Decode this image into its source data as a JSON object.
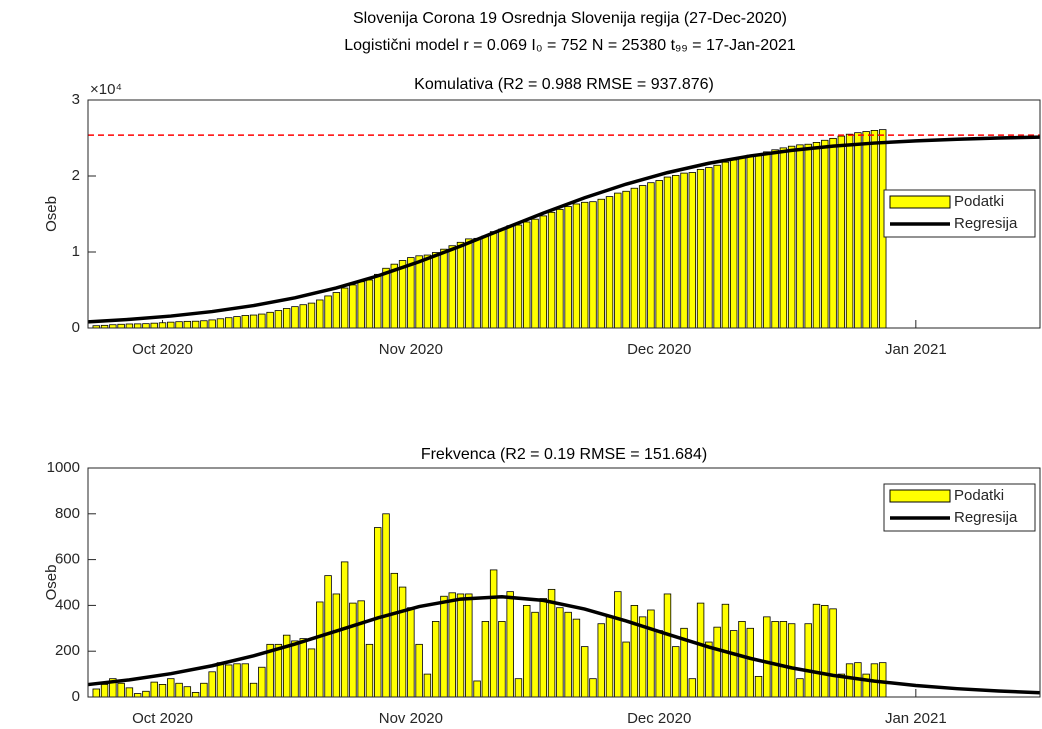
{
  "title": [
    "Slovenija Corona 19 Osrednja Slovenija regija (27-Dec-2020)",
    "Logistični model r = 0.069  I₀ = 752  N = 25380  t₉₉ = 17-Jan-2021"
  ],
  "chart_data": [
    {
      "type": "bar",
      "title": "Komulativa (R2 = 0.988  RMSE = 937.876)",
      "ylabel": "Oseb",
      "y_exponent": "×10⁴",
      "xlim": [
        0,
        115
      ],
      "xticks": [
        {
          "value": 9,
          "label": "Oct 2020"
        },
        {
          "value": 39,
          "label": "Nov 2020"
        },
        {
          "value": 69,
          "label": "Dec 2020"
        },
        {
          "value": 100,
          "label": "Jan 2021"
        }
      ],
      "ylim": [
        0,
        30000
      ],
      "yticks": [
        0,
        {
          "value": 10000,
          "label": "1"
        },
        {
          "value": 20000,
          "label": "2"
        },
        {
          "value": 30000,
          "label": "3"
        }
      ],
      "reference_line": {
        "value": 25380,
        "color": "#ff0000"
      },
      "legend": "right",
      "x": [
        1,
        2,
        3,
        4,
        5,
        6,
        7,
        8,
        9,
        10,
        11,
        12,
        13,
        14,
        15,
        16,
        17,
        18,
        19,
        20,
        21,
        22,
        23,
        24,
        25,
        26,
        27,
        28,
        29,
        30,
        31,
        32,
        33,
        34,
        35,
        36,
        37,
        38,
        39,
        40,
        41,
        42,
        43,
        44,
        45,
        46,
        47,
        48,
        49,
        50,
        51,
        52,
        53,
        54,
        55,
        56,
        57,
        58,
        59,
        60,
        61,
        62,
        63,
        64,
        65,
        66,
        67,
        68,
        69,
        70,
        71,
        72,
        73,
        74,
        75,
        76,
        77,
        78,
        79,
        80,
        81,
        82,
        83,
        84,
        85,
        86,
        87,
        88,
        89,
        90,
        91,
        92,
        93,
        94,
        95,
        96
      ],
      "series": [
        {
          "name": "Podatki",
          "type": "bar",
          "color": "#ffff00",
          "values": [
            300,
            350,
            430,
            490,
            530,
            545,
            570,
            635,
            690,
            770,
            830,
            875,
            895,
            955,
            1065,
            1215,
            1355,
            1500,
            1645,
            1705,
            1835,
            2065,
            2295,
            2565,
            2810,
            3065,
            3275,
            3690,
            4220,
            4670,
            5260,
            5670,
            6090,
            6320,
            7060,
            7860,
            8400,
            8880,
            9270,
            9500,
            9600,
            9930,
            10370,
            10825,
            11275,
            11725,
            11795,
            12125,
            12680,
            13010,
            13470,
            13550,
            13950,
            14320,
            14750,
            15220,
            15610,
            15980,
            16320,
            16540,
            16620,
            16940,
            17290,
            17750,
            17990,
            18390,
            18740,
            19120,
            19410,
            19860,
            20080,
            20380,
            20460,
            20870,
            21110,
            21415,
            21820,
            22110,
            22440,
            22740,
            22830,
            23180,
            23450,
            23700,
            23920,
            24100,
            24180,
            24420,
            24700,
            24950,
            25250,
            25500,
            25700,
            25850,
            26000,
            26100
          ]
        },
        {
          "name": "Regresija",
          "type": "line",
          "color": "#000000",
          "x": [
            0,
            5,
            10,
            15,
            20,
            25,
            30,
            35,
            40,
            45,
            50,
            55,
            60,
            65,
            70,
            75,
            80,
            85,
            90,
            95,
            100,
            105,
            110,
            115
          ],
          "values": [
            813,
            1133,
            1571,
            2162,
            2950,
            3975,
            5272,
            6858,
            8713,
            10777,
            12953,
            15113,
            17135,
            18928,
            20445,
            21674,
            22638,
            23377,
            23928,
            24334,
            24629,
            24843,
            24998,
            25108
          ]
        }
      ]
    },
    {
      "type": "bar",
      "title": "Frekvenca (R2 = 0.19  RMSE = 151.684)",
      "ylabel": "Oseb",
      "xlim": [
        0,
        115
      ],
      "xticks": [
        {
          "value": 9,
          "label": "Oct 2020"
        },
        {
          "value": 39,
          "label": "Nov 2020"
        },
        {
          "value": 69,
          "label": "Dec 2020"
        },
        {
          "value": 100,
          "label": "Jan 2021"
        }
      ],
      "ylim": [
        0,
        1000
      ],
      "yticks": [
        0,
        200,
        400,
        600,
        800,
        1000
      ],
      "legend": "upper right",
      "x": [
        1,
        2,
        3,
        4,
        5,
        6,
        7,
        8,
        9,
        10,
        11,
        12,
        13,
        14,
        15,
        16,
        17,
        18,
        19,
        20,
        21,
        22,
        23,
        24,
        25,
        26,
        27,
        28,
        29,
        30,
        31,
        32,
        33,
        34,
        35,
        36,
        37,
        38,
        39,
        40,
        41,
        42,
        43,
        44,
        45,
        46,
        47,
        48,
        49,
        50,
        51,
        52,
        53,
        54,
        55,
        56,
        57,
        58,
        59,
        60,
        61,
        62,
        63,
        64,
        65,
        66,
        67,
        68,
        69,
        70,
        71,
        72,
        73,
        74,
        75,
        76,
        77,
        78,
        79,
        80,
        81,
        82,
        83,
        84,
        85,
        86,
        87,
        88,
        89,
        90,
        91,
        92,
        93,
        94,
        95,
        96
      ],
      "series": [
        {
          "name": "Podatki",
          "type": "bar",
          "color": "#ffff00",
          "values": [
            35,
            55,
            80,
            60,
            40,
            15,
            25,
            65,
            55,
            80,
            60,
            45,
            20,
            60,
            110,
            150,
            140,
            145,
            145,
            60,
            130,
            230,
            230,
            270,
            245,
            255,
            210,
            415,
            530,
            450,
            590,
            410,
            420,
            230,
            740,
            800,
            540,
            480,
            390,
            230,
            100,
            330,
            440,
            455,
            450,
            450,
            70,
            330,
            555,
            330,
            460,
            80,
            400,
            370,
            430,
            470,
            390,
            370,
            340,
            220,
            80,
            320,
            350,
            460,
            240,
            400,
            350,
            380,
            290,
            450,
            220,
            300,
            80,
            410,
            240,
            305,
            405,
            290,
            330,
            300,
            90,
            350,
            330,
            330,
            320,
            80,
            320,
            405,
            400,
            385,
            100,
            145,
            150,
            100,
            145,
            150
          ]
        },
        {
          "name": "Regresija",
          "type": "line",
          "color": "#000000",
          "x": [
            0,
            5,
            10,
            15,
            20,
            25,
            30,
            35,
            40,
            45,
            50,
            55,
            60,
            65,
            70,
            75,
            80,
            85,
            90,
            95,
            100,
            105,
            110,
            115
          ],
          "values": [
            54.3,
            74.7,
            101.7,
            136.5,
            179.9,
            231.2,
            288.1,
            345.4,
            395.0,
            427.6,
            437.6,
            421.9,
            384.1,
            332.0,
            274.2,
            218.3,
            168.7,
            127.3,
            94.5,
            69.2,
            50.3,
            36.3,
            26.0,
            18.5
          ]
        }
      ]
    }
  ]
}
